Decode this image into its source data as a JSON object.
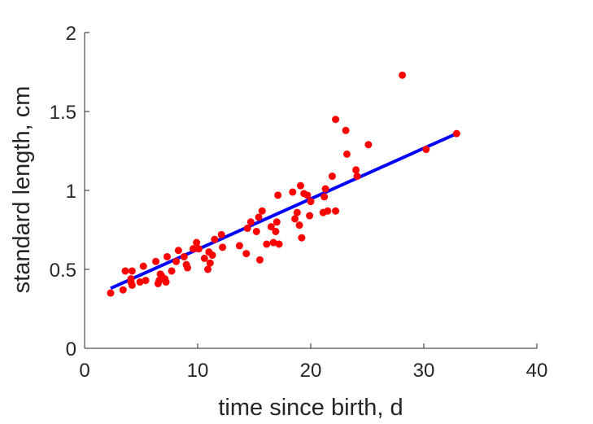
{
  "chart_data": {
    "type": "scatter",
    "xlabel": "time since birth, d",
    "ylabel": "standard length, cm",
    "xlim": [
      0,
      40
    ],
    "ylim": [
      0,
      2
    ],
    "xticks": [
      "0",
      "10",
      "20",
      "30",
      "40"
    ],
    "yticks": [
      "0",
      "0.5",
      "1",
      "1.5",
      "2"
    ],
    "grid": false,
    "legend": "none",
    "colors": {
      "points": "#ff0000",
      "fit_line": "#0000ff",
      "axes": "#262626"
    },
    "series": [
      {
        "kind": "points",
        "x": [
          2.3,
          3.4,
          3.6,
          4.1,
          4.1,
          4.2,
          4.2,
          4.9,
          5.2,
          5.4,
          6.3,
          6.5,
          6.6,
          6.7,
          6.8,
          7.1,
          7.2,
          7.3,
          7.7,
          8.1,
          8.3,
          8.8,
          9.0,
          9.1,
          9.6,
          9.9,
          10.1,
          10.6,
          10.9,
          11.0,
          11.1,
          11.3,
          11.5,
          12.1,
          12.2,
          13.7,
          14.3,
          14.4,
          14.7,
          15.2,
          15.4,
          15.5,
          15.7,
          16.1,
          16.5,
          16.7,
          16.9,
          17.0,
          17.1,
          17.2,
          18.4,
          18.6,
          18.8,
          19.0,
          19.1,
          19.2,
          19.4,
          19.7,
          19.9,
          20.0,
          21.1,
          21.2,
          21.3,
          21.5,
          21.9,
          22.2,
          22.2,
          23.1,
          23.2,
          24.0,
          24.1,
          25.1,
          28.1,
          30.2,
          32.9
        ],
        "y": [
          0.35,
          0.37,
          0.49,
          0.42,
          0.44,
          0.4,
          0.49,
          0.42,
          0.52,
          0.43,
          0.55,
          0.41,
          0.43,
          0.47,
          0.46,
          0.44,
          0.42,
          0.58,
          0.49,
          0.55,
          0.62,
          0.58,
          0.53,
          0.51,
          0.63,
          0.67,
          0.63,
          0.57,
          0.5,
          0.61,
          0.54,
          0.59,
          0.69,
          0.72,
          0.64,
          0.65,
          0.6,
          0.76,
          0.8,
          0.74,
          0.83,
          0.56,
          0.87,
          0.66,
          0.77,
          0.67,
          0.74,
          0.8,
          0.97,
          0.66,
          0.99,
          0.82,
          0.86,
          0.78,
          1.03,
          0.7,
          0.98,
          0.97,
          0.84,
          0.93,
          0.86,
          0.96,
          1.01,
          0.87,
          1.09,
          1.45,
          0.87,
          1.38,
          1.23,
          1.13,
          1.09,
          1.29,
          1.73,
          1.26,
          1.36
        ]
      },
      {
        "kind": "line",
        "x": [
          2.3,
          32.9
        ],
        "y": [
          0.38,
          1.36
        ]
      }
    ]
  }
}
